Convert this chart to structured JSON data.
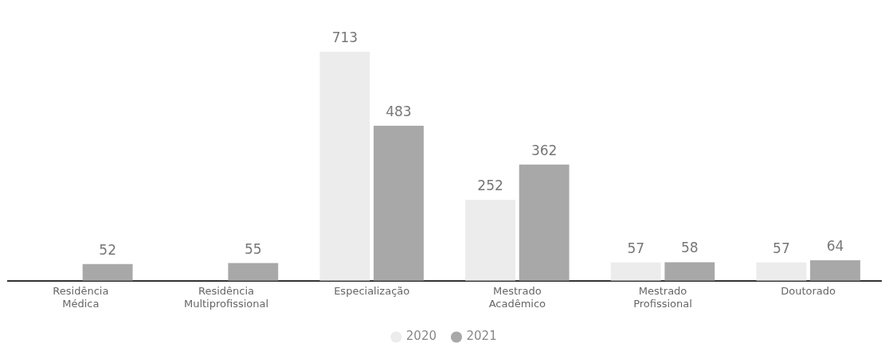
{
  "chart_data": {
    "type": "bar",
    "categories": [
      "Residência Médica",
      "Residência Multiprofissional",
      "Especialização",
      "Mestrado Acadêmico",
      "Mestrado Profissional",
      "Doutorado"
    ],
    "series": [
      {
        "name": "2020",
        "color": "#ececec",
        "values": [
          null,
          null,
          713,
          252,
          57,
          57
        ]
      },
      {
        "name": "2021",
        "color": "#a8a8a8",
        "values": [
          52,
          55,
          483,
          362,
          58,
          64
        ]
      }
    ],
    "tick_labels": "x",
    "data_labels": true,
    "legend": "bottom",
    "grid": false
  }
}
